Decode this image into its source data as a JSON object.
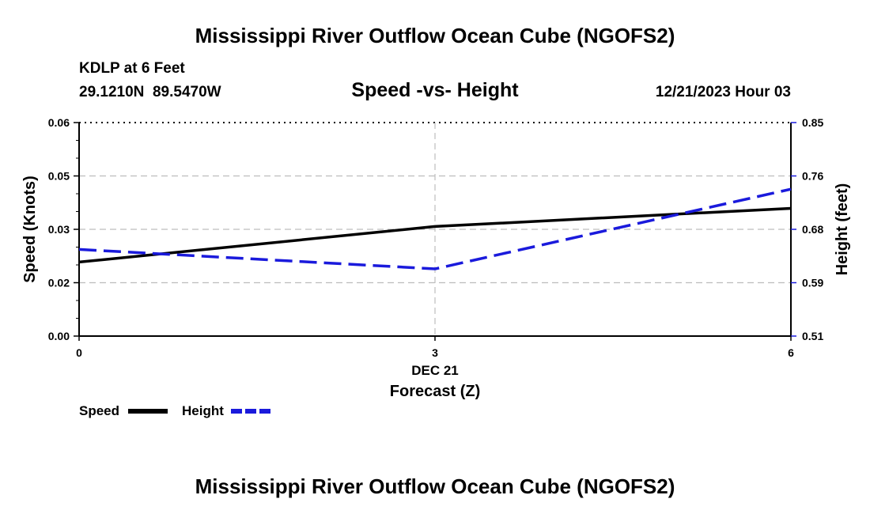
{
  "chart_data": {
    "type": "line",
    "title": "Mississippi River Outflow Ocean Cube (NGOFS2)",
    "footer_title": "Mississippi River Outflow Ocean Cube (NGOFS2)",
    "station": "KDLP at 6 Feet",
    "coordinates": "29.1210N  89.5470W",
    "subtitle": "Speed -vs- Height",
    "datetime": "12/21/2023 Hour 03",
    "xlabel": "Forecast (Z)",
    "xdate_label": "DEC 21",
    "ylabel_left": "Speed (Knots)",
    "ylabel_right": "Height (feet)",
    "x_ticks": [
      0,
      3,
      6
    ],
    "x_tick_labels": [
      "0",
      "3",
      "6"
    ],
    "xlim": [
      0,
      6
    ],
    "ylim_left": [
      0.0,
      0.06
    ],
    "y_left_ticks": [
      0.0,
      0.015,
      0.03,
      0.045,
      0.06
    ],
    "y_left_tick_labels": [
      "0.00",
      "0.02",
      "0.03",
      "0.05",
      "0.06"
    ],
    "ylim_right": [
      0.51,
      0.85
    ],
    "y_right_tick_labels": [
      "0.51",
      "0.59",
      "0.68",
      "0.76",
      "0.85"
    ],
    "grid": true,
    "series": [
      {
        "name": "Speed",
        "axis": "left",
        "color": "#000000",
        "style": "solid",
        "x": [
          0,
          3,
          6
        ],
        "values": [
          0.0208,
          0.0308,
          0.0359
        ]
      },
      {
        "name": "Height",
        "axis": "right",
        "color": "#1a1adc",
        "style": "dashed",
        "x": [
          0,
          3,
          6
        ],
        "values": [
          0.648,
          0.617,
          0.744
        ]
      }
    ],
    "legend": [
      {
        "label": "Speed",
        "color": "#000000",
        "style": "solid"
      },
      {
        "label": "Height",
        "color": "#1a1adc",
        "style": "dashed"
      }
    ],
    "legend_position": "bottom-left"
  }
}
